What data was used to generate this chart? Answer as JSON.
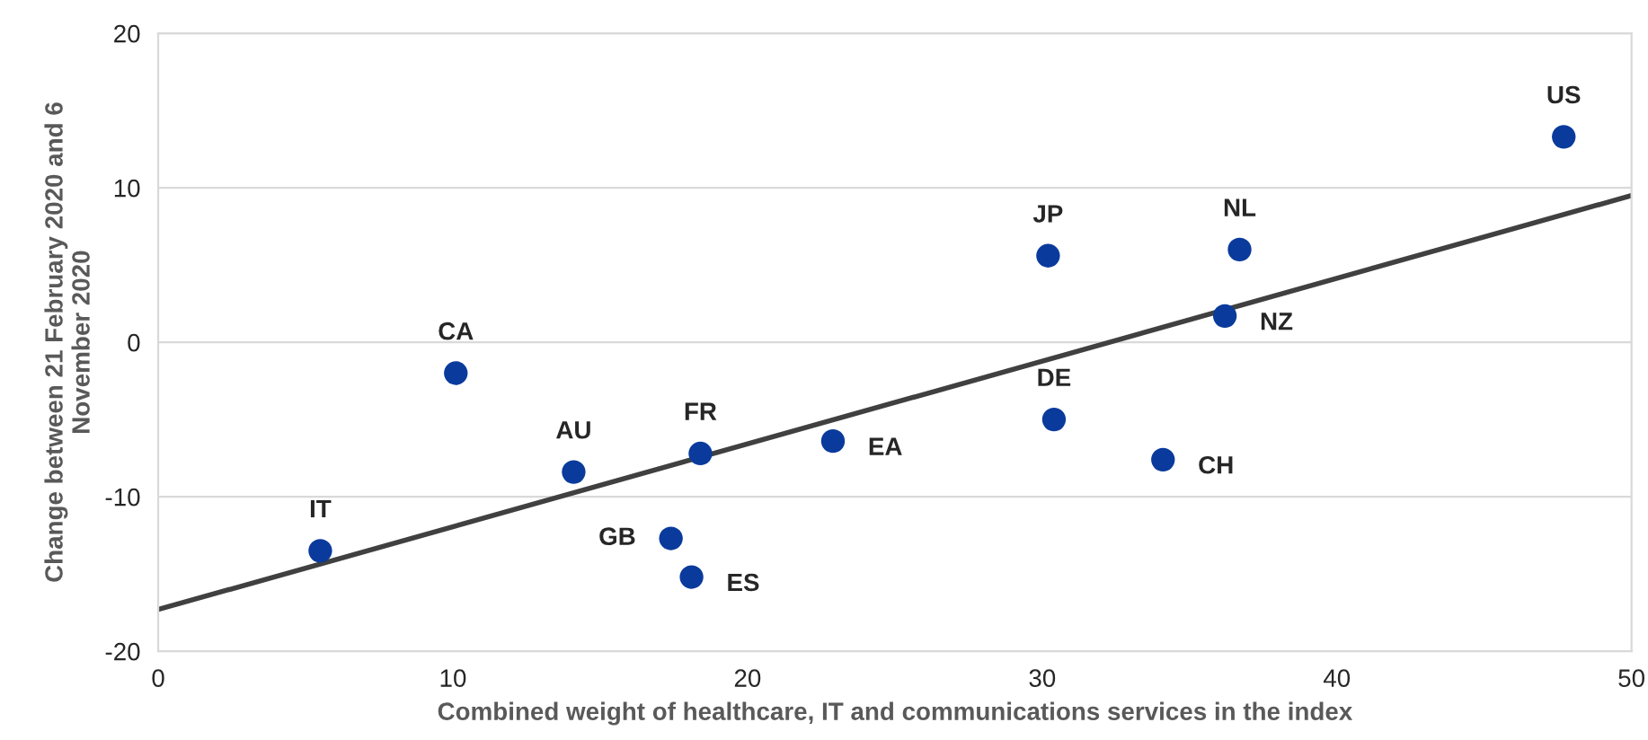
{
  "chart_data": {
    "type": "scatter",
    "xlabel": "Combined weight of healthcare, IT and communications services in the index",
    "ylabel": "Change between 21 February 2020 and 6\nNovember 2020",
    "series": [
      {
        "marker": "circle",
        "color": "#0a3a9c",
        "x": [
          5.5,
          10.1,
          14.1,
          18.4,
          17.4,
          18.1,
          22.9,
          30.2,
          30.4,
          34.1,
          36.2,
          36.7,
          47.7
        ],
        "values": [
          -13.5,
          -2.0,
          -8.4,
          -7.2,
          -12.7,
          -15.2,
          -6.4,
          5.6,
          -5.0,
          -7.6,
          1.7,
          6.0,
          13.3
        ]
      },
      {
        "type": "line",
        "color": "#404040",
        "x": [
          0,
          50
        ],
        "values": [
          -17.3,
          9.5
        ]
      }
    ],
    "annotations": [
      {
        "text": "IT",
        "x": 5.5,
        "y": -13.5
      },
      {
        "text": "CA",
        "x": 10.1,
        "y": -2.0
      },
      {
        "text": "AU",
        "x": 14.1,
        "y": -8.4
      },
      {
        "text": "FR",
        "x": 18.4,
        "y": -7.2
      },
      {
        "text": "GB",
        "x": 17.4,
        "y": -12.7
      },
      {
        "text": "ES",
        "x": 18.1,
        "y": -15.2
      },
      {
        "text": "EA",
        "x": 22.9,
        "y": -6.4
      },
      {
        "text": "JP",
        "x": 30.2,
        "y": 5.6
      },
      {
        "text": "DE",
        "x": 30.4,
        "y": -5.0
      },
      {
        "text": "CH",
        "x": 34.1,
        "y": -7.6
      },
      {
        "text": "NZ",
        "x": 36.2,
        "y": 1.7
      },
      {
        "text": "NL",
        "x": 36.7,
        "y": 6.0
      },
      {
        "text": "US",
        "x": 47.7,
        "y": 13.3
      }
    ],
    "xlim": [
      0,
      50
    ],
    "xticks": [
      0,
      10,
      20,
      30,
      40,
      50
    ],
    "ylim": [
      -20,
      20
    ],
    "yticks": [
      -20,
      -10,
      0,
      10,
      20
    ],
    "grid": "y"
  }
}
